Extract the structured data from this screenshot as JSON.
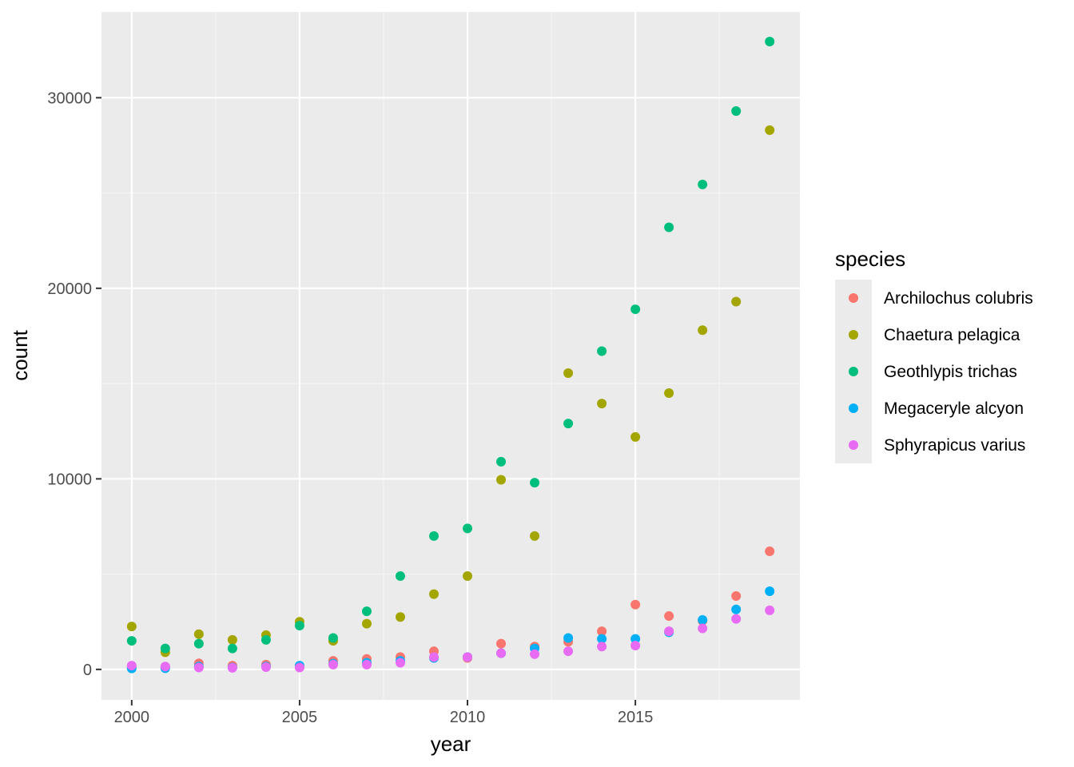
{
  "chart_data": {
    "type": "scatter",
    "xlabel": "year",
    "ylabel": "count",
    "xlim": [
      1999.1,
      2019.9
    ],
    "ylim": [
      -1600,
      34500
    ],
    "x_ticks": [
      2000,
      2005,
      2010,
      2015
    ],
    "y_ticks": [
      0,
      10000,
      20000,
      30000
    ],
    "grid": true,
    "legend": {
      "title": "species",
      "position": "right"
    },
    "x": [
      2000,
      2001,
      2002,
      2003,
      2004,
      2005,
      2006,
      2007,
      2008,
      2009,
      2010,
      2011,
      2012,
      2013,
      2014,
      2015,
      2016,
      2017,
      2018,
      2019
    ],
    "series": [
      {
        "name": "Archilochus colubris",
        "color": "#F8766D",
        "values": [
          150,
          120,
          320,
          200,
          250,
          180,
          450,
          550,
          650,
          950,
          600,
          1350,
          1200,
          1450,
          2000,
          3400,
          2800,
          2550,
          3850,
          6200
        ]
      },
      {
        "name": "Chaetura pelagica",
        "color": "#A3A500",
        "values": [
          2250,
          900,
          1850,
          1550,
          1800,
          2500,
          1500,
          2400,
          2750,
          3950,
          4900,
          9950,
          7000,
          15550,
          13950,
          12200,
          14500,
          17800,
          19300,
          28300
        ]
      },
      {
        "name": "Geothlypis trichas",
        "color": "#00BF7D",
        "values": [
          1500,
          1100,
          1350,
          1100,
          1550,
          2300,
          1650,
          3050,
          4900,
          7000,
          7400,
          10900,
          9800,
          12900,
          16700,
          18900,
          23200,
          25450,
          29300,
          32950
        ]
      },
      {
        "name": "Megaceryle alcyon",
        "color": "#00B0F6",
        "values": [
          50,
          60,
          150,
          100,
          150,
          200,
          300,
          350,
          450,
          600,
          650,
          850,
          1100,
          1650,
          1600,
          1600,
          1950,
          2600,
          3150,
          4100
        ]
      },
      {
        "name": "Sphyrapicus varius",
        "color": "#E76BF3",
        "values": [
          200,
          150,
          100,
          80,
          120,
          100,
          250,
          250,
          350,
          650,
          650,
          850,
          800,
          950,
          1200,
          1250,
          2000,
          2150,
          2650,
          3100
        ]
      }
    ]
  },
  "colors": {
    "panel_background": "#EBEBEB",
    "grid_major": "#FFFFFF",
    "grid_minor": "#F5F5F5",
    "legend_key_background": "#EBEBEB"
  }
}
